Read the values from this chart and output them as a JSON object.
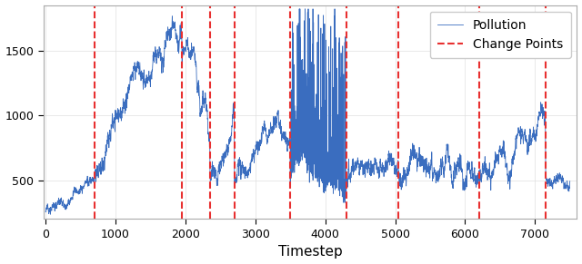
{
  "change_points": [
    700,
    1950,
    2350,
    2700,
    3500,
    4300,
    5050,
    6200,
    7150
  ],
  "xlabel": "Timestep",
  "line_color": "#3A6DBF",
  "cp_color": "#E83030",
  "cp_linestyle": "--",
  "cp_linewidth": 1.5,
  "line_width": 0.6,
  "legend_pollution": "Pollution",
  "legend_cp": "Change Points",
  "ylim": [
    200,
    1850
  ],
  "xlim": [
    -30,
    7600
  ],
  "yticks": [
    500,
    1000,
    1500
  ],
  "xticks": [
    0,
    1000,
    2000,
    3000,
    4000,
    5000,
    6000,
    7000
  ],
  "figsize": [
    6.4,
    2.91
  ],
  "dpi": 100,
  "seed": 12345,
  "n": 7500
}
